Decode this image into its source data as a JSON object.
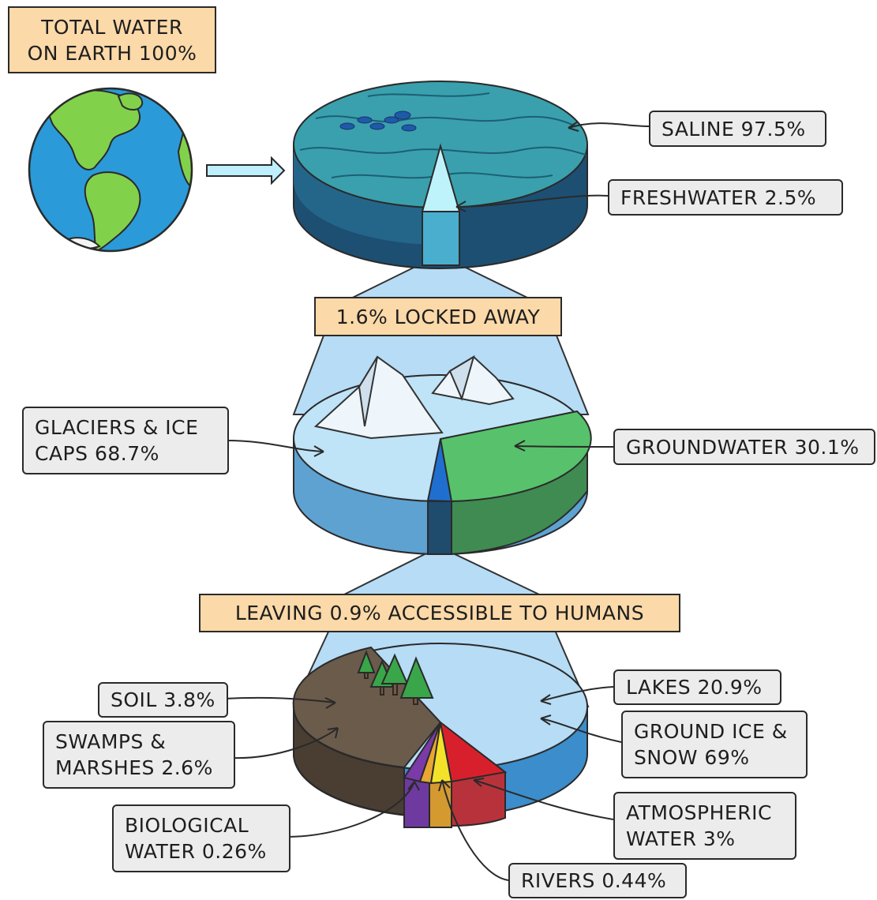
{
  "banners": {
    "total_line1": "TOTAL WATER",
    "total_line2": "ON EARTH 100%",
    "locked": "1.6% LOCKED AWAY",
    "accessible": "LEAVING 0.9% ACCESSIBLE TO HUMANS"
  },
  "labels": {
    "saline": "SALINE 97.5%",
    "freshwater": "FRESHWATER 2.5%",
    "glaciers_line1": "GLACIERS & ICE",
    "glaciers_line2": "CAPS 68.7%",
    "groundwater": "GROUNDWATER 30.1%",
    "soil": "SOIL 3.8%",
    "swamps_line1": "SWAMPS &",
    "swamps_line2": "MARSHES 2.6%",
    "biological_line1": "BIOLOGICAL",
    "biological_line2": "WATER 0.26%",
    "lakes": "LAKES 20.9%",
    "groundice_line1": "GROUND ICE &",
    "groundice_line2": "SNOW 69%",
    "atmospheric_line1": "ATMOSPHERIC",
    "atmospheric_line2": "WATER 3%",
    "rivers": "RIVERS 0.44%"
  },
  "colors": {
    "banner": "#fbd9a8",
    "tag": "#ececec",
    "ocean": "#3a98a8",
    "ice": "#bfe3f7",
    "groundwater": "#57c26b",
    "soil": "#6b5b4b",
    "lakes": "#b6dcf6",
    "rivers": "#f4e22a",
    "biological": "#7a3aa8",
    "atmospheric": "#d8202c"
  }
}
